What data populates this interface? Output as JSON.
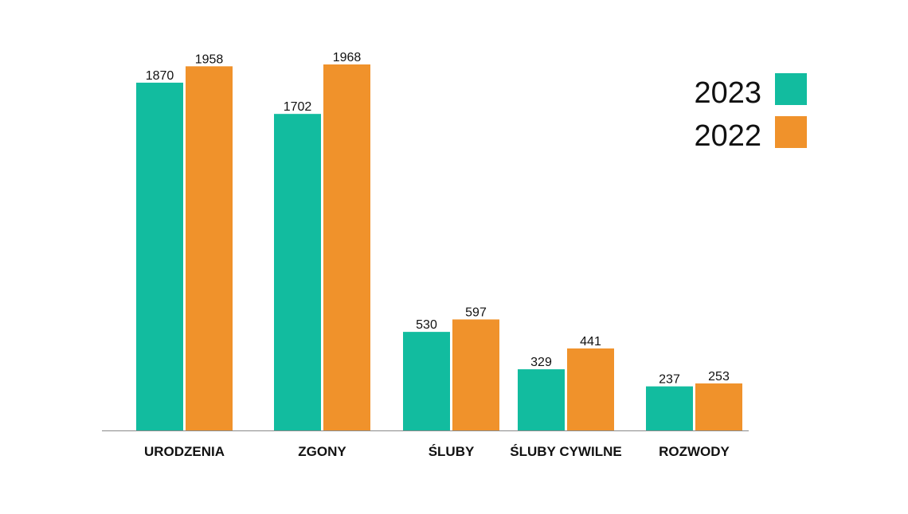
{
  "chart_data": {
    "type": "bar",
    "categories": [
      "URODZENIA",
      "ZGONY",
      "ŚLUBY",
      "ŚLUBY CYWILNE",
      "ROZWODY"
    ],
    "series": [
      {
        "name": "2023",
        "values": [
          1870,
          1702,
          530,
          329,
          237
        ],
        "color": "#12bc9f"
      },
      {
        "name": "2022",
        "values": [
          1958,
          1968,
          597,
          441,
          253
        ],
        "color": "#f0922b"
      }
    ],
    "legend_position": "top-right",
    "grid": false,
    "ylim": [
      0,
      2000
    ]
  }
}
